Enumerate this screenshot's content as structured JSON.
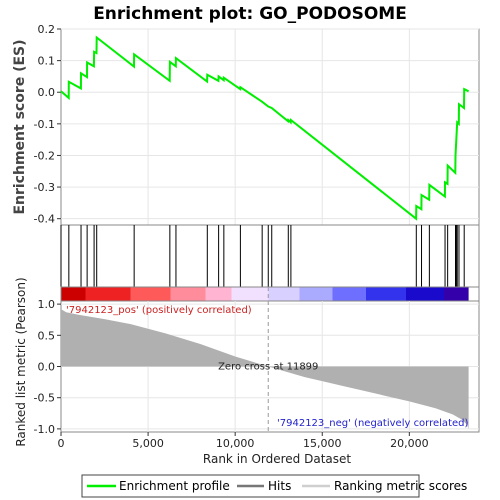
{
  "chart_data": {
    "type": "line",
    "title": "Enrichment plot: GO_PODOSOME",
    "ylabel_top": "Enrichment score (ES)",
    "ylabel_bottom": "Ranked list metric (Pearson)",
    "xlabel": "Rank in Ordered Dataset",
    "xlim": [
      0,
      24000
    ],
    "xticks": [
      0,
      5000,
      10000,
      15000,
      20000
    ],
    "xtick_labels": [
      "0",
      "5,000",
      "10,000",
      "15,000",
      "20,000"
    ],
    "es_ylim": [
      -0.42,
      0.2
    ],
    "es_yticks": [
      0.2,
      0.1,
      0.0,
      -0.1,
      -0.2,
      -0.3,
      -0.4
    ],
    "es_ytick_labels": [
      "0.2",
      "0.1",
      "0.0",
      "-0.1",
      "-0.2",
      "-0.3",
      "-0.4"
    ],
    "metric_ylim": [
      -1.05,
      1.05
    ],
    "metric_yticks": [
      1.0,
      0.5,
      0.0,
      -0.5,
      -1.0
    ],
    "metric_ytick_labels": [
      "1.0",
      "0.5",
      "0.0",
      "-0.5",
      "-1.0"
    ],
    "total_ranks": 23400,
    "hits": [
      0,
      450,
      1150,
      1500,
      1900,
      2050,
      4200,
      6250,
      6600,
      8400,
      9050,
      9350,
      10300,
      11550,
      11900,
      12100,
      13050,
      13200,
      20400,
      20700,
      21150,
      22050,
      22200,
      22650,
      22700,
      22750,
      22850,
      23150
    ],
    "es_curve": [
      [
        0,
        0.003
      ],
      [
        440,
        -0.018
      ],
      [
        450,
        0.033
      ],
      [
        1140,
        0.012
      ],
      [
        1150,
        0.06
      ],
      [
        1490,
        0.048
      ],
      [
        1500,
        0.094
      ],
      [
        1890,
        0.082
      ],
      [
        1900,
        0.128
      ],
      [
        2040,
        0.124
      ],
      [
        2050,
        0.173
      ],
      [
        4190,
        0.081
      ],
      [
        4200,
        0.12
      ],
      [
        6240,
        0.036
      ],
      [
        6250,
        0.096
      ],
      [
        6590,
        0.082
      ],
      [
        6600,
        0.108
      ],
      [
        8390,
        0.034
      ],
      [
        8400,
        0.055
      ],
      [
        9040,
        0.036
      ],
      [
        9050,
        0.05
      ],
      [
        9340,
        0.038
      ],
      [
        9350,
        0.046
      ],
      [
        10290,
        0.01
      ],
      [
        10300,
        0.016
      ],
      [
        11540,
        -0.03
      ],
      [
        11900,
        -0.045
      ],
      [
        12100,
        -0.05
      ],
      [
        13040,
        -0.092
      ],
      [
        13050,
        -0.088
      ],
      [
        13190,
        -0.095
      ],
      [
        13200,
        -0.088
      ],
      [
        20390,
        -0.4
      ],
      [
        20400,
        -0.36
      ],
      [
        20690,
        -0.37
      ],
      [
        20700,
        -0.325
      ],
      [
        21140,
        -0.34
      ],
      [
        21150,
        -0.293
      ],
      [
        22040,
        -0.33
      ],
      [
        22050,
        -0.285
      ],
      [
        22190,
        -0.29
      ],
      [
        22200,
        -0.232
      ],
      [
        22640,
        -0.255
      ],
      [
        22650,
        -0.2
      ],
      [
        22700,
        -0.145
      ],
      [
        22750,
        -0.095
      ],
      [
        22840,
        -0.1
      ],
      [
        22850,
        -0.038
      ],
      [
        23140,
        -0.05
      ],
      [
        23150,
        0.01
      ],
      [
        23400,
        0.003
      ]
    ],
    "metric_curve": [
      [
        0,
        0.92
      ],
      [
        300,
        0.87
      ],
      [
        1000,
        0.83
      ],
      [
        2500,
        0.76
      ],
      [
        4000,
        0.68
      ],
      [
        6000,
        0.53
      ],
      [
        8000,
        0.36
      ],
      [
        10000,
        0.16
      ],
      [
        11899,
        0.0
      ],
      [
        14000,
        -0.17
      ],
      [
        16000,
        -0.3
      ],
      [
        18000,
        -0.43
      ],
      [
        20000,
        -0.56
      ],
      [
        21500,
        -0.67
      ],
      [
        22500,
        -0.77
      ],
      [
        23000,
        -0.85
      ],
      [
        23300,
        -0.93
      ],
      [
        23400,
        -1.0
      ]
    ],
    "heatmap_stops": [
      "#cc0000",
      "#ee2222",
      "#ff5a5a",
      "#ff8c9a",
      "#ffb4d2",
      "#f2e0ff",
      "#d8d0ff",
      "#aaaaff",
      "#6e6eff",
      "#3333ee",
      "#1a0acc",
      "#3300aa"
    ],
    "heatmap_boundaries": [
      0,
      1400,
      4000,
      6300,
      8300,
      9800,
      11900,
      13700,
      15600,
      17500,
      19800,
      22000,
      23400
    ],
    "zero_cross_rank": 11899,
    "annotations": {
      "pos_label": "'7942123_pos' (positively correlated)",
      "neg_label": "'7942123_neg' (negatively correlated)",
      "zero_label": "Zero cross at 11899"
    },
    "legend": [
      "Enrichment profile",
      "Hits",
      "Ranking metric scores"
    ],
    "colors": {
      "es_line": "#00ee00",
      "hits": "#000000",
      "metric_fill": "#b0b0b0",
      "grid": "#e6e6e6",
      "zero_line": "#888888"
    }
  }
}
